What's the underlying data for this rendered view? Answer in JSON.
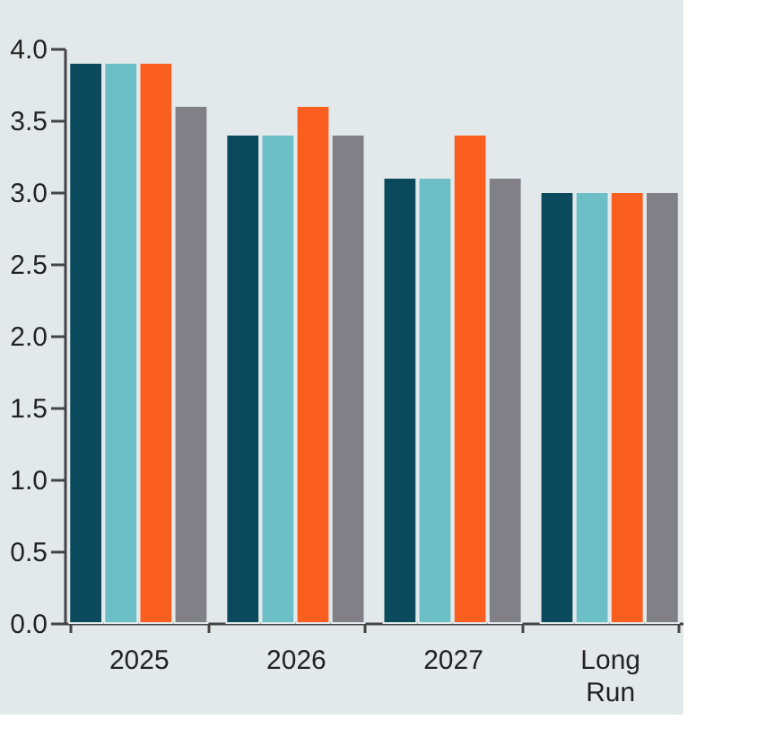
{
  "chart_data": {
    "type": "bar",
    "categories": [
      "2025",
      "2026",
      "2027",
      "Long Run"
    ],
    "series": [
      {
        "color": "#0b4a5c",
        "values": [
          3.9,
          3.4,
          3.1,
          3.0
        ]
      },
      {
        "color": "#6dbfc7",
        "values": [
          3.9,
          3.4,
          3.1,
          3.0
        ]
      },
      {
        "color": "#fb5f1f",
        "values": [
          3.9,
          3.6,
          3.4,
          3.0
        ]
      },
      {
        "color": "#808086",
        "values": [
          3.6,
          3.4,
          3.1,
          3.0
        ]
      }
    ],
    "ylim": [
      0,
      4
    ],
    "yticks": [
      {
        "value": 0,
        "label": "0.0"
      },
      0.5,
      {
        "value": 1,
        "label": "1.0"
      },
      1.5,
      {
        "value": 2,
        "label": "2.0"
      },
      2.5,
      {
        "value": 3,
        "label": "3.0"
      },
      3.5,
      {
        "value": 4,
        "label": "4.0"
      }
    ],
    "grid": false,
    "legend": false
  }
}
